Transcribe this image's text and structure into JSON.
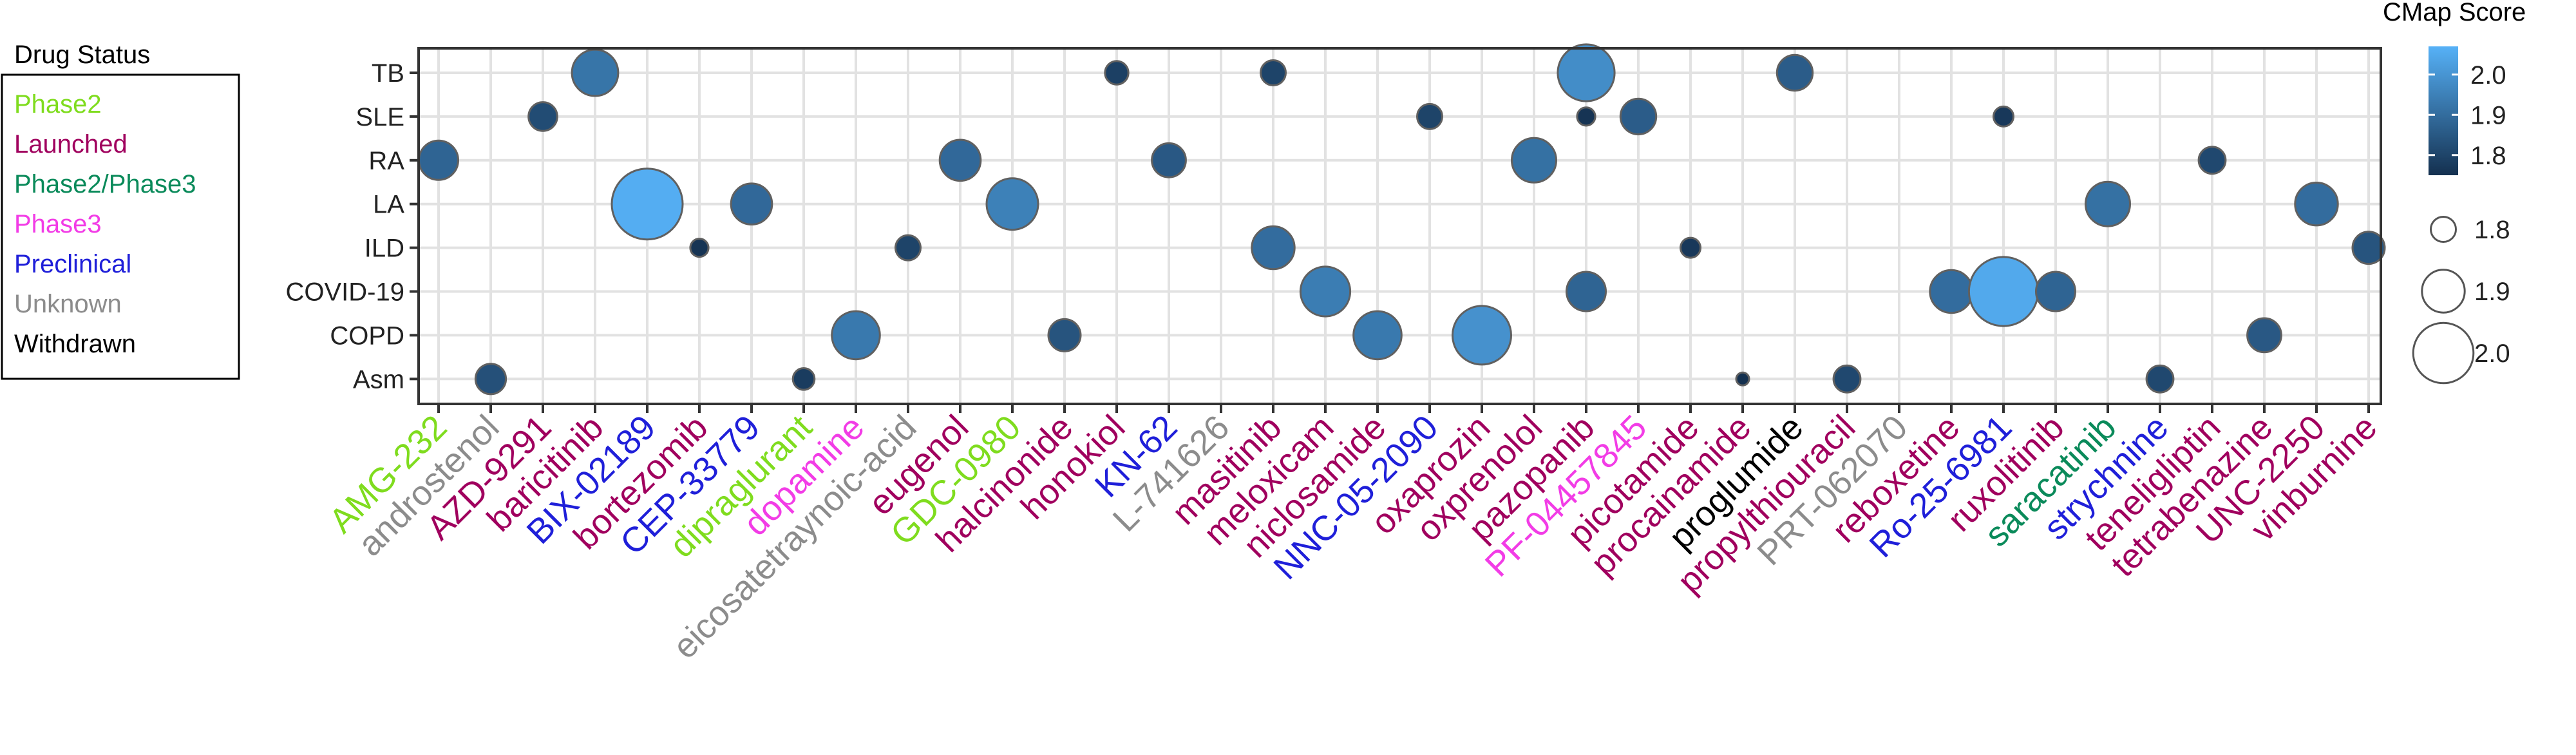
{
  "chart_data": {
    "type": "scatter",
    "x_categories": [
      "AMG-232",
      "androstenol",
      "AZD-9291",
      "baricitinib",
      "BIX-02189",
      "bortezomib",
      "CEP-33779",
      "dipraglurant",
      "dopamine",
      "eicosatetraynoic-acid",
      "eugenol",
      "GDC-0980",
      "halcinonide",
      "honokiol",
      "KN-62",
      "L-741626",
      "masitinib",
      "meloxicam",
      "niclosamide",
      "NNC-05-2090",
      "oxaprozin",
      "oxprenolol",
      "pazopanib",
      "PF-04457845",
      "picotamide",
      "procainamide",
      "proglumide",
      "propylthiouracil",
      "PRT-062070",
      "reboxetine",
      "Ro-25-6981",
      "ruxolitinib",
      "saracatinib",
      "strychnine",
      "teneligliptin",
      "tetrabenazine",
      "UNC-2250",
      "vinburnine"
    ],
    "x_status": [
      "Phase2",
      "Unknown",
      "Launched",
      "Launched",
      "Preclinical",
      "Launched",
      "Preclinical",
      "Phase2",
      "Phase3",
      "Unknown",
      "Launched",
      "Phase2",
      "Launched",
      "Launched",
      "Preclinical",
      "Unknown",
      "Launched",
      "Launched",
      "Launched",
      "Preclinical",
      "Launched",
      "Launched",
      "Launched",
      "Phase3",
      "Launched",
      "Launched",
      "Withdrawn",
      "Launched",
      "Unknown",
      "Launched",
      "Preclinical",
      "Launched",
      "Phase2/Phase3",
      "Preclinical",
      "Launched",
      "Launched",
      "Launched",
      "Launched"
    ],
    "y_categories": [
      "TB",
      "SLE",
      "RA",
      "LA",
      "ILD",
      "COVID-19",
      "COPD",
      "Asm"
    ],
    "points": [
      {
        "x": "AMG-232",
        "y": "RA",
        "score": 1.88
      },
      {
        "x": "androstenol",
        "y": "Asm",
        "score": 1.83
      },
      {
        "x": "AZD-9291",
        "y": "SLE",
        "score": 1.82
      },
      {
        "x": "baricitinib",
        "y": "TB",
        "score": 1.92
      },
      {
        "x": "BIX-02189",
        "y": "LA",
        "score": 2.06
      },
      {
        "x": "bortezomib",
        "y": "ILD",
        "score": 1.76
      },
      {
        "x": "CEP-33779",
        "y": "LA",
        "score": 1.89
      },
      {
        "x": "dipraglurant",
        "y": "Asm",
        "score": 1.78
      },
      {
        "x": "dopamine",
        "y": "COPD",
        "score": 1.93
      },
      {
        "x": "eicosatetraynoic-acid",
        "y": "ILD",
        "score": 1.8
      },
      {
        "x": "eugenol",
        "y": "RA",
        "score": 1.89
      },
      {
        "x": "GDC-0980",
        "y": "LA",
        "score": 1.95
      },
      {
        "x": "halcinonide",
        "y": "COPD",
        "score": 1.84
      },
      {
        "x": "honokiol",
        "y": "TB",
        "score": 1.79
      },
      {
        "x": "KN-62",
        "y": "RA",
        "score": 1.85
      },
      {
        "x": "masitinib",
        "y": "TB",
        "score": 1.8
      },
      {
        "x": "masitinib",
        "y": "ILD",
        "score": 1.9
      },
      {
        "x": "meloxicam",
        "y": "COVID-19",
        "score": 1.94
      },
      {
        "x": "niclosamide",
        "y": "COPD",
        "score": 1.93
      },
      {
        "x": "NNC-05-2090",
        "y": "SLE",
        "score": 1.8
      },
      {
        "x": "oxaprozin",
        "y": "COPD",
        "score": 1.99
      },
      {
        "x": "oxprenolol",
        "y": "RA",
        "score": 1.91
      },
      {
        "x": "pazopanib",
        "y": "TB",
        "score": 1.98
      },
      {
        "x": "pazopanib",
        "y": "SLE",
        "score": 1.76
      },
      {
        "x": "pazopanib",
        "y": "COVID-19",
        "score": 1.88
      },
      {
        "x": "PF-04457845",
        "y": "SLE",
        "score": 1.86
      },
      {
        "x": "picotamide",
        "y": "ILD",
        "score": 1.77
      },
      {
        "x": "procainamide",
        "y": "Asm",
        "score": 1.73
      },
      {
        "x": "proglumide",
        "y": "TB",
        "score": 1.86
      },
      {
        "x": "propylthiouracil",
        "y": "Asm",
        "score": 1.81
      },
      {
        "x": "reboxetine",
        "y": "COVID-19",
        "score": 1.9
      },
      {
        "x": "Ro-25-6981",
        "y": "COVID-19",
        "score": 2.05
      },
      {
        "x": "Ro-25-6981",
        "y": "SLE",
        "score": 1.77
      },
      {
        "x": "ruxolitinib",
        "y": "COVID-19",
        "score": 1.88
      },
      {
        "x": "saracatinib",
        "y": "LA",
        "score": 1.91
      },
      {
        "x": "strychnine",
        "y": "Asm",
        "score": 1.81
      },
      {
        "x": "teneligliptin",
        "y": "RA",
        "score": 1.81
      },
      {
        "x": "tetrabenazine",
        "y": "COPD",
        "score": 1.85
      },
      {
        "x": "UNC-2250",
        "y": "LA",
        "score": 1.9
      },
      {
        "x": "vinburnine",
        "y": "ILD",
        "score": 1.84
      }
    ],
    "legend_status": {
      "title": "Drug Status",
      "items": [
        {
          "label": "Phase2",
          "color": "#7fdc1e"
        },
        {
          "label": "Launched",
          "color": "#a0005e"
        },
        {
          "label": "Phase2/Phase3",
          "color": "#0a8a5a"
        },
        {
          "label": "Phase3",
          "color": "#f23ce6"
        },
        {
          "label": "Preclinical",
          "color": "#1f1fd9"
        },
        {
          "label": "Unknown",
          "color": "#8c8c8c"
        },
        {
          "label": "Withdrawn",
          "color": "#000000"
        }
      ]
    },
    "legend_score": {
      "title": "CMap Score",
      "color_ticks": [
        "2.0",
        "1.9",
        "1.8"
      ],
      "size_ticks": [
        "1.8",
        "1.9",
        "2.0"
      ],
      "low_color": "#14304f",
      "high_color": "#56b1f7",
      "range": [
        1.75,
        2.07
      ]
    },
    "colors": {
      "grid": "#e2e2e2",
      "panel_border": "#333333",
      "point_border": "#606060"
    }
  }
}
